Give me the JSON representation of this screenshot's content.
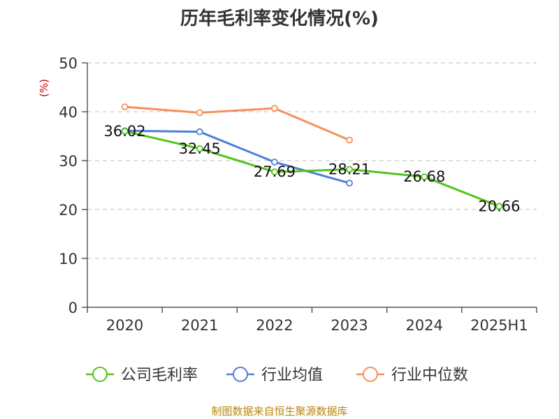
{
  "chart_data": {
    "type": "line",
    "title": "历年毛利率变化情况(%)",
    "ylabel": "(%)",
    "ylim": [
      0,
      50
    ],
    "yticks": [
      "0",
      "10",
      "20",
      "30",
      "40",
      "50"
    ],
    "categories": [
      "2020",
      "2021",
      "2022",
      "2023",
      "2024",
      "2025H1"
    ],
    "grid": true,
    "legend_position": "bottom",
    "series": [
      {
        "name": "公司毛利率",
        "color": "#52c41a",
        "values": [
          36.02,
          32.45,
          27.69,
          28.21,
          26.68,
          20.66
        ],
        "labels": [
          "36.02",
          "32.45",
          "27.69",
          "28.21",
          "26.68",
          "20.66"
        ]
      },
      {
        "name": "行业均值",
        "color": "#4f7fd9",
        "values": [
          36.1,
          35.9,
          29.7,
          25.4,
          null,
          null
        ]
      },
      {
        "name": "行业中位数",
        "color": "#f5905a",
        "values": [
          41.0,
          39.8,
          40.7,
          34.2,
          null,
          null
        ]
      }
    ],
    "source": "制图数据来自恒生聚源数据库"
  }
}
